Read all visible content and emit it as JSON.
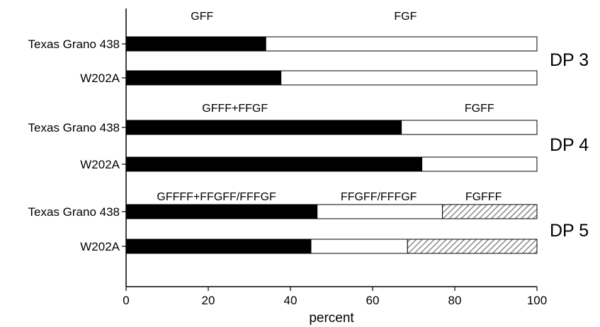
{
  "chart_data": {
    "type": "bar",
    "orientation": "horizontal",
    "stacked": true,
    "title": "",
    "xlabel": "percent",
    "ylabel": "",
    "xlim": [
      0,
      100
    ],
    "xticks": [
      0,
      20,
      40,
      60,
      80,
      100
    ],
    "grid": false,
    "legend": "none",
    "colors": {
      "black": "#000000",
      "white": "#ffffff",
      "hatched": "#a9a9a9"
    },
    "groups": [
      {
        "label": "DP 3",
        "segment_labels": [
          "GFF",
          "FGF"
        ],
        "segment_styles": [
          "black",
          "white"
        ],
        "rows": [
          {
            "label": "Texas Grano 438",
            "values": [
              34,
              66
            ]
          },
          {
            "label": "W202A",
            "values": [
              37.7,
              62.3
            ]
          }
        ]
      },
      {
        "label": "DP 4",
        "segment_labels": [
          "GFFF+FFGF",
          "FGFF"
        ],
        "segment_styles": [
          "black",
          "white"
        ],
        "rows": [
          {
            "label": "Texas Grano 438",
            "values": [
              67,
              33
            ]
          },
          {
            "label": "W202A",
            "values": [
              72,
              28
            ]
          }
        ]
      },
      {
        "label": "DP 5",
        "segment_labels": [
          "GFFFF+FFGFF/FFFGF",
          "FFGFF/FFFGF",
          "FGFFF"
        ],
        "segment_styles": [
          "black",
          "white",
          "hatched"
        ],
        "rows": [
          {
            "label": "Texas Grano 438",
            "values": [
              46.5,
              30.5,
              23
            ]
          },
          {
            "label": "W202A",
            "values": [
              45,
              23.5,
              31.5
            ]
          }
        ]
      }
    ]
  }
}
